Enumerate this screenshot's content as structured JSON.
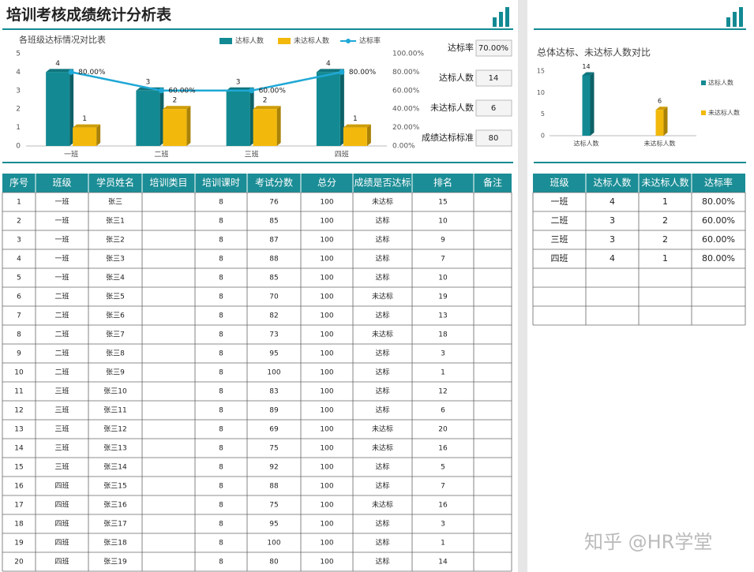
{
  "header": {
    "title": "培训考核成绩统计分析表"
  },
  "chart_data": [
    {
      "type": "combo",
      "title": "各班级达标情况对比表",
      "categories": [
        "一班",
        "二班",
        "三班",
        "四班"
      ],
      "series": [
        {
          "name": "达标人数",
          "color": "#138a93",
          "kind": "bar",
          "values": [
            4,
            3,
            3,
            4
          ]
        },
        {
          "name": "未达标人数",
          "color": "#f2b90c",
          "kind": "bar",
          "values": [
            1,
            2,
            2,
            1
          ]
        },
        {
          "name": "达标率",
          "color": "#1fa8d6",
          "kind": "line",
          "axis": "y2",
          "values": [
            80,
            60,
            60,
            80
          ],
          "value_labels": [
            "80.00%",
            "60.00%",
            "60.00%",
            "80.00%"
          ]
        }
      ],
      "ylim": [
        0,
        5
      ],
      "yticks": [
        0,
        1,
        2,
        3,
        4,
        5
      ],
      "y2lim": [
        0,
        100
      ],
      "y2ticks": [
        {
          "value": 0,
          "label": "0.00%"
        },
        {
          "value": 20,
          "label": "20.00%"
        },
        {
          "value": 40,
          "label": "40.00%"
        },
        {
          "value": 60,
          "label": "60.00%"
        },
        {
          "value": 80,
          "label": "80.00%"
        },
        {
          "value": 100,
          "label": "100.00%"
        }
      ],
      "grid": false,
      "legend": "top"
    },
    {
      "type": "bar",
      "title": "总体达标、未达标人数对比",
      "categories": [
        "达标人数",
        "未达标人数"
      ],
      "values": [
        14,
        6
      ],
      "colors": [
        "#138a93",
        "#f2b90c"
      ],
      "ylim": [
        0,
        15
      ],
      "yticks": [
        0,
        5,
        10,
        15
      ],
      "grid": false,
      "legend": "right"
    }
  ],
  "summary": [
    {
      "label": "达标率",
      "value": "70.00%"
    },
    {
      "label": "达标人数",
      "value": 14
    },
    {
      "label": "未达标人数",
      "value": 6
    },
    {
      "label": "成绩达标标准",
      "value": 80
    }
  ],
  "table": {
    "columns": [
      "序号",
      "班级",
      "学员姓名",
      "培训类目",
      "培训课时",
      "考试分数",
      "总分",
      "成绩是否达标",
      "排名",
      "备注"
    ],
    "rows": [
      [
        1,
        "一班",
        "张三",
        null,
        8,
        76,
        100,
        "未达标",
        15,
        null
      ],
      [
        2,
        "一班",
        "张三1",
        null,
        8,
        85,
        100,
        "达标",
        10,
        null
      ],
      [
        3,
        "一班",
        "张三2",
        null,
        8,
        87,
        100,
        "达标",
        9,
        null
      ],
      [
        4,
        "一班",
        "张三3",
        null,
        8,
        88,
        100,
        "达标",
        7,
        null
      ],
      [
        5,
        "一班",
        "张三4",
        null,
        8,
        85,
        100,
        "达标",
        10,
        null
      ],
      [
        6,
        "二班",
        "张三5",
        null,
        8,
        70,
        100,
        "未达标",
        19,
        null
      ],
      [
        7,
        "二班",
        "张三6",
        null,
        8,
        82,
        100,
        "达标",
        13,
        null
      ],
      [
        8,
        "二班",
        "张三7",
        null,
        8,
        73,
        100,
        "未达标",
        18,
        null
      ],
      [
        9,
        "二班",
        "张三8",
        null,
        8,
        95,
        100,
        "达标",
        3,
        null
      ],
      [
        10,
        "二班",
        "张三9",
        null,
        8,
        100,
        100,
        "达标",
        1,
        null
      ],
      [
        11,
        "三班",
        "张三10",
        null,
        8,
        83,
        100,
        "达标",
        12,
        null
      ],
      [
        12,
        "三班",
        "张三11",
        null,
        8,
        89,
        100,
        "达标",
        6,
        null
      ],
      [
        13,
        "三班",
        "张三12",
        null,
        8,
        69,
        100,
        "未达标",
        20,
        null
      ],
      [
        14,
        "三班",
        "张三13",
        null,
        8,
        75,
        100,
        "未达标",
        16,
        null
      ],
      [
        15,
        "三班",
        "张三14",
        null,
        8,
        92,
        100,
        "达标",
        5,
        null
      ],
      [
        16,
        "四班",
        "张三15",
        null,
        8,
        88,
        100,
        "达标",
        7,
        null
      ],
      [
        17,
        "四班",
        "张三16",
        null,
        8,
        75,
        100,
        "未达标",
        16,
        null
      ],
      [
        18,
        "四班",
        "张三17",
        null,
        8,
        95,
        100,
        "达标",
        3,
        null
      ],
      [
        19,
        "四班",
        "张三18",
        null,
        8,
        100,
        100,
        "达标",
        1,
        null
      ],
      [
        20,
        "四班",
        "张三19",
        null,
        8,
        80,
        100,
        "达标",
        14,
        null
      ]
    ]
  },
  "summary_table": {
    "columns": [
      "班级",
      "达标人数",
      "未达标人数",
      "达标率"
    ],
    "rows": [
      [
        "一班",
        4,
        1,
        "80.00%"
      ],
      [
        "二班",
        3,
        2,
        "60.00%"
      ],
      [
        "三班",
        3,
        2,
        "60.00%"
      ],
      [
        "四班",
        4,
        1,
        "80.00%"
      ]
    ]
  },
  "watermark": "知乎 @HR学堂"
}
